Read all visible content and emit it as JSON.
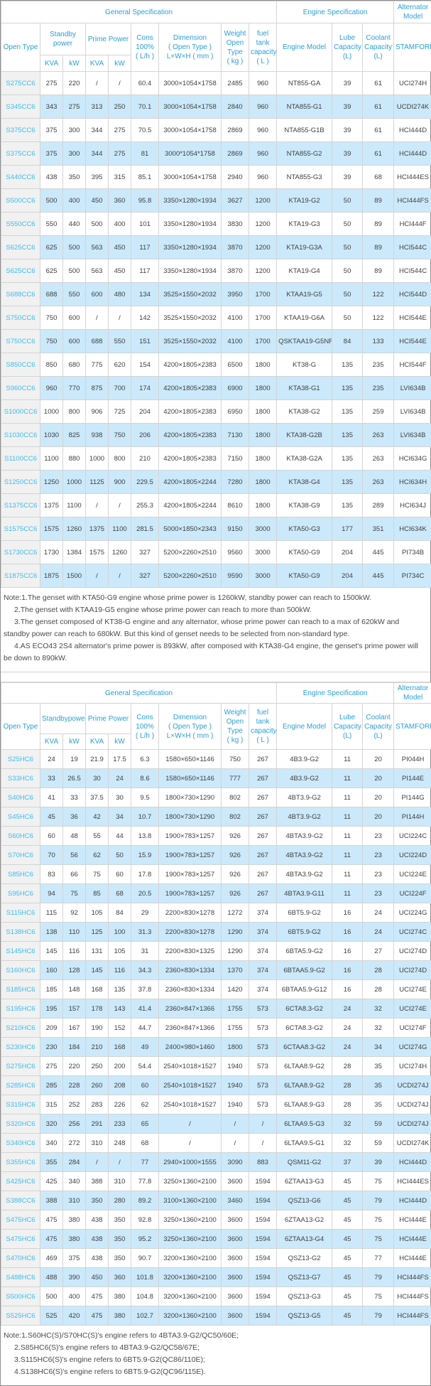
{
  "colors": {
    "header_text": "#2b9fd9",
    "model_link": "#3bbcee",
    "row_stripe": "#cbe9fa",
    "first_col_bg": "#f1f1f1",
    "border": "#d4d4d4"
  },
  "tables": [
    {
      "header": {
        "general": "General Specification",
        "engine_spec": "Engine Specification",
        "alternator": "Alternator\nModel",
        "open_type": "Open Type",
        "standby": "Standby\npower",
        "prime": "Prime Power",
        "cons": "Cons\n100%\n( L/h )",
        "dimension": "Dimension\n( Open Type )\nL×W×H ( mm )",
        "weight": "Weight\nOpen Type\n( kg )",
        "fuel": "fuel tank\ncapacity\n( L )",
        "engine_model": "Engine Model",
        "lube": "Lube\nCapacity\n(L)",
        "coolant": "Coolant\nCapacity\n(L)",
        "stamford": "STAMFORD",
        "kva1": "KVA",
        "kw1": "kW",
        "kva2": "KVA",
        "kw2": "kW"
      },
      "rows": [
        [
          "S275CC6",
          "275",
          "220",
          "/",
          "/",
          "60.4",
          "3000×1054×1758",
          "2485",
          "960",
          "NT855-GA",
          "39",
          "61",
          "UCI274H"
        ],
        [
          "S345CC6",
          "343",
          "275",
          "313",
          "250",
          "70.1",
          "3000×1054×1758",
          "2840",
          "960",
          "NTA855-G1",
          "39",
          "61",
          "UCDI274K"
        ],
        [
          "S375CC6",
          "375",
          "300",
          "344",
          "275",
          "70.5",
          "3000×1054×1758",
          "2869",
          "960",
          "NTA855-G1B",
          "39",
          "61",
          "HCI444D"
        ],
        [
          "S375CC6",
          "375",
          "300",
          "344",
          "275",
          "81",
          "3000*1054*1758",
          "2869",
          "960",
          "NTA855-G2",
          "39",
          "61",
          "HCI444D"
        ],
        [
          "S440CC6",
          "438",
          "350",
          "395",
          "315",
          "85.1",
          "3000×1054×1758",
          "2940",
          "960",
          "NTA855-G3",
          "39",
          "68",
          "HCI444ES"
        ],
        [
          "S500CC6",
          "500",
          "400",
          "450",
          "360",
          "95.8",
          "3350×1280×1934",
          "3627",
          "1200",
          "KTA19-G2",
          "50",
          "89",
          "HCI444FS"
        ],
        [
          "S550CC6",
          "550",
          "440",
          "500",
          "400",
          "101",
          "3350×1280×1934",
          "3830",
          "1200",
          "KTA19-G3",
          "50",
          "89",
          "HCI444F"
        ],
        [
          "S625CC6",
          "625",
          "500",
          "563",
          "450",
          "117",
          "3350×1280×1934",
          "3870",
          "1200",
          "KTA19-G3A",
          "50",
          "89",
          "HCI544C"
        ],
        [
          "S625CC6",
          "625",
          "500",
          "563",
          "450",
          "117",
          "3350×1280×1934",
          "3870",
          "1200",
          "KTA19-G4",
          "50",
          "89",
          "HCI544C"
        ],
        [
          "S688CC6",
          "688",
          "550",
          "600",
          "480",
          "134",
          "3525×1550×2032",
          "3950",
          "1700",
          "KTAA19-G5",
          "50",
          "122",
          "HCI544D"
        ],
        [
          "S750CC6",
          "750",
          "600",
          "/",
          "/",
          "142",
          "3525×1550×2032",
          "4100",
          "1700",
          "KTAA19-G6A",
          "50",
          "122",
          "HCI544E"
        ],
        [
          "S750CC6",
          "750",
          "600",
          "688",
          "550",
          "151",
          "3525×1550×2032",
          "4100",
          "1700",
          "QSKTAA19-G5NR2",
          "84",
          "133",
          "HCI544E"
        ],
        [
          "S850CC6",
          "850",
          "680",
          "775",
          "620",
          "154",
          "4200×1805×2383",
          "6500",
          "1800",
          "KT38-G",
          "135",
          "235",
          "HCI544F"
        ],
        [
          "S960CC6",
          "960",
          "770",
          "875",
          "700",
          "174",
          "4200×1805×2383",
          "6900",
          "1800",
          "KTA38-G1",
          "135",
          "235",
          "LVI634B"
        ],
        [
          "S1000CC6",
          "1000",
          "800",
          "906",
          "725",
          "204",
          "4200×1805×2383",
          "6950",
          "1800",
          "KTA38-G2",
          "135",
          "259",
          "LVI634B"
        ],
        [
          "S1030CC6",
          "1030",
          "825",
          "938",
          "750",
          "206",
          "4200×1805×2383",
          "7130",
          "1800",
          "KTA38-G2B",
          "135",
          "263",
          "LVI634B"
        ],
        [
          "S1100CC6",
          "1100",
          "880",
          "1000",
          "800",
          "210",
          "4200×1805×2383",
          "7150",
          "1800",
          "KTA38-G2A",
          "135",
          "263",
          "HCI634G"
        ],
        [
          "S1250CC6",
          "1250",
          "1000",
          "1125",
          "900",
          "229.5",
          "4200×1805×2244",
          "7280",
          "1800",
          "KTA38-G4",
          "135",
          "263",
          "HCI634H"
        ],
        [
          "S1375CC6",
          "1375",
          "1100",
          "/",
          "/",
          "255.3",
          "4200×1805×2244",
          "8610",
          "1800",
          "KTA38-G9",
          "135",
          "289",
          "HCI634J"
        ],
        [
          "S1575CC6",
          "1575",
          "1260",
          "1375",
          "1100",
          "281.5",
          "5000×1850×2343",
          "9150",
          "3000",
          "KTA50-G3",
          "177",
          "351",
          "HCI634K"
        ],
        [
          "S1730CC6",
          "1730",
          "1384",
          "1575",
          "1260",
          "327",
          "5200×2260×2510",
          "9560",
          "3000",
          "KTA50-G9",
          "204",
          "445",
          "PI734B"
        ],
        [
          "S1875CC6",
          "1875",
          "1500",
          "/",
          "/",
          "327",
          "5200×2260×2510",
          "9590",
          "3000",
          "KTA50-G9",
          "204",
          "445",
          "PI734C"
        ]
      ]
    },
    {
      "header": {
        "general": "General Specification",
        "engine_spec": "Engine Specification",
        "alternator": "Alternator\nModel",
        "open_type": "Open Type",
        "standby": "Standbypower",
        "prime": "Prime Power",
        "cons": "Cons\n100%\n( L/h )",
        "dimension": "Dimension\n( Open Type )\nL×W×H ( mm )",
        "weight": "Weight\nOpen Type\n( kg )",
        "fuel": "fuel tank\ncapacity\n( L )",
        "engine_model": "Engine Model",
        "lube": "Lube\nCapacity\n(L)",
        "coolant": "Coolant\nCapacity\n(L)",
        "stamford": "STAMFORD",
        "kva1": "KVA",
        "kw1": "kW",
        "kva2": "KVA",
        "kw2": "kW"
      },
      "rows": [
        [
          "S25HC6",
          "24",
          "19",
          "21.9",
          "17.5",
          "6.3",
          "1580×650×1146",
          "750",
          "267",
          "4B3.9-G2",
          "11",
          "20",
          "PI044H"
        ],
        [
          "S33HC6",
          "33",
          "26.5",
          "30",
          "24",
          "8.6",
          "1580×650×1146",
          "777",
          "267",
          "4B3.9-G2",
          "11",
          "20",
          "PI144E"
        ],
        [
          "S40HC6",
          "41",
          "33",
          "37.5",
          "30",
          "9.5",
          "1800×730×1290",
          "802",
          "267",
          "4BT3.9-G2",
          "11",
          "20",
          "PI144G"
        ],
        [
          "S45HC6",
          "45",
          "36",
          "42",
          "34",
          "10.7",
          "1800×730×1290",
          "802",
          "267",
          "4BT3.9-G2",
          "11",
          "20",
          "PI144H"
        ],
        [
          "S60HC6",
          "60",
          "48",
          "55",
          "44",
          "13.8",
          "1900×783×1257",
          "926",
          "267",
          "4BTA3.9-G2",
          "11",
          "23",
          "UCI224C"
        ],
        [
          "S70HC6",
          "70",
          "56",
          "62",
          "50",
          "15.9",
          "1900×783×1257",
          "926",
          "267",
          "4BTA3.9-G2",
          "11",
          "23",
          "UCI224D"
        ],
        [
          "S85HC6",
          "83",
          "66",
          "75",
          "60",
          "17.8",
          "1900×783×1257",
          "926",
          "267",
          "4BTA3.9-G2",
          "11",
          "23",
          "UCI224E"
        ],
        [
          "S95HC6",
          "94",
          "75",
          "85",
          "68",
          "20.5",
          "1900×783×1257",
          "926",
          "267",
          "4BTA3.9-G11",
          "11",
          "23",
          "UCI224F"
        ],
        [
          "S115HC6",
          "115",
          "92",
          "105",
          "84",
          "29",
          "2200×830×1278",
          "1272",
          "374",
          "6BT5.9-G2",
          "16",
          "24",
          "UCI224G"
        ],
        [
          "S138HC6",
          "138",
          "110",
          "125",
          "100",
          "31.3",
          "2200×830×1278",
          "1290",
          "374",
          "6BT5.9-G2",
          "16",
          "24",
          "UCI274C"
        ],
        [
          "S145HC6",
          "145",
          "116",
          "131",
          "105",
          "31",
          "2200×830×1325",
          "1290",
          "374",
          "6BTA5.9-G2",
          "16",
          "27",
          "UCI274D"
        ],
        [
          "S160HC6",
          "160",
          "128",
          "145",
          "116",
          "34.3",
          "2360×830×1334",
          "1370",
          "374",
          "6BTAA5.9-G2",
          "16",
          "28",
          "UCI274D"
        ],
        [
          "S185HC6",
          "185",
          "148",
          "168",
          "135",
          "37.8",
          "2360×830×1334",
          "1420",
          "374",
          "6BTAA5.9-G12",
          "16",
          "28",
          "UCI274E"
        ],
        [
          "S195HC6",
          "195",
          "157",
          "178",
          "143",
          "41.4",
          "2360×847×1366",
          "1755",
          "573",
          "6CTA8.3-G2",
          "24",
          "32",
          "UCI274E"
        ],
        [
          "S210HC6",
          "209",
          "167",
          "190",
          "152",
          "44.7",
          "2360×847×1366",
          "1755",
          "573",
          "6CTA8.3-G2",
          "24",
          "32",
          "UCI274F"
        ],
        [
          "S230HC6",
          "230",
          "184",
          "210",
          "168",
          "49",
          "2400×980×1460",
          "1800",
          "573",
          "6CTAA8.3-G2",
          "24",
          "34",
          "UCI274G"
        ],
        [
          "S275HC6",
          "275",
          "220",
          "250",
          "200",
          "54.4",
          "2540×1018×1527",
          "1940",
          "573",
          "6LTAA8.9-G2",
          "28",
          "35",
          "UCI274H"
        ],
        [
          "S285HC6",
          "285",
          "228",
          "260",
          "208",
          "60",
          "2540×1018×1527",
          "1940",
          "573",
          "6LTAA8.9-G2",
          "28",
          "35",
          "UCDI274J"
        ],
        [
          "S315HC6",
          "315",
          "252",
          "283",
          "226",
          "62",
          "2540×1018×1527",
          "1940",
          "573",
          "6LTAA8.9-G3",
          "28",
          "35",
          "UCDI274J"
        ],
        [
          "S320HC6",
          "320",
          "256",
          "291",
          "233",
          "65",
          "/",
          "/",
          "/",
          "6LTAA9.5-G3",
          "32",
          "59",
          "UCDI274J"
        ],
        [
          "S340HC6",
          "340",
          "272",
          "310",
          "248",
          "68",
          "/",
          "/",
          "/",
          "6LTAA9.5-G1",
          "32",
          "59",
          "UCDI274K"
        ],
        [
          "S355HC6",
          "355",
          "284",
          "/",
          "/",
          "77",
          "2940×1000×1555",
          "3090",
          "883",
          "QSM11-G2",
          "37",
          "39",
          "HCI444D"
        ],
        [
          "S425HC6",
          "425",
          "340",
          "388",
          "310",
          "77.8",
          "3250×1360×2100",
          "3600",
          "1594",
          "6ZTAA13-G3",
          "45",
          "75",
          "HCI444ES"
        ],
        [
          "S388CC6",
          "388",
          "310",
          "350",
          "280",
          "89.2",
          "3100×1360×2100",
          "3460",
          "1594",
          "QSZ13-G6",
          "45",
          "79",
          "HCI444D"
        ],
        [
          "S475HC6",
          "475",
          "380",
          "438",
          "350",
          "92.8",
          "3250×1360×2100",
          "3600",
          "1594",
          "6ZTAA13-G2",
          "45",
          "75",
          "HCI444E"
        ],
        [
          "S475HC6",
          "475",
          "380",
          "438",
          "350",
          "95.2",
          "3250×1360×2100",
          "3600",
          "1594",
          "6ZTAA13-G4",
          "45",
          "75",
          "HCI444E"
        ],
        [
          "S470HC6",
          "469",
          "375",
          "438",
          "350",
          "90.7",
          "3200×1360×2100",
          "3600",
          "1594",
          "QSZ13-G2",
          "45",
          "77",
          "HCI444E"
        ],
        [
          "S488HC6",
          "488",
          "390",
          "450",
          "360",
          "101.8",
          "3200×1360×2100",
          "3600",
          "1594",
          "QSZ13-G7",
          "45",
          "79",
          "HCI444FS"
        ],
        [
          "S500HC6",
          "500",
          "400",
          "475",
          "380",
          "104.8",
          "3200×1360×2100",
          "3600",
          "1594",
          "QSZ13-G3",
          "45",
          "75",
          "HCI444FS"
        ],
        [
          "S525HC6",
          "525",
          "420",
          "475",
          "380",
          "102.7",
          "3200×1360×2100",
          "3600",
          "1594",
          "QSZ13-G5",
          "45",
          "79",
          "HCI444FS"
        ]
      ]
    }
  ],
  "notes": [
    {
      "lines": [
        "Note:1.The genset with KTA50-G9 engine whose prime power is 1260kW,  standby power can reach to 1500kW.",
        "2.The genset with KTAA19-G5 engine whose prime power can reach to more than 500kW.",
        "3.The genset composed of KT38-G engine and any alternator, whose prime power can reach to a max of 620kW and standby power can reach to 680kW. But this kind of genset needs to be selected from non-standard type.",
        "4.AS ECO43 2S4 alternator's prime power is 893kW, after composed with KTA38-G4 engine, the genset's prime power will be down to 890kW."
      ]
    },
    {
      "lines": [
        "Note:1.S60HC(S)/S70HC(S)'s engine refers to 4BTA3.9-G2/QC50/60E;",
        "2.S85HC6(S)'s engine refers to 4BTA3.9-G2/QC58/67E;",
        "3.S115HC6(S)'s engine refers to 6BT5.9-G2(QC86/110E);",
        "4.S138HC6(S)'s engine refers to 6BT5.9-G2(QC96/115E)."
      ]
    }
  ]
}
